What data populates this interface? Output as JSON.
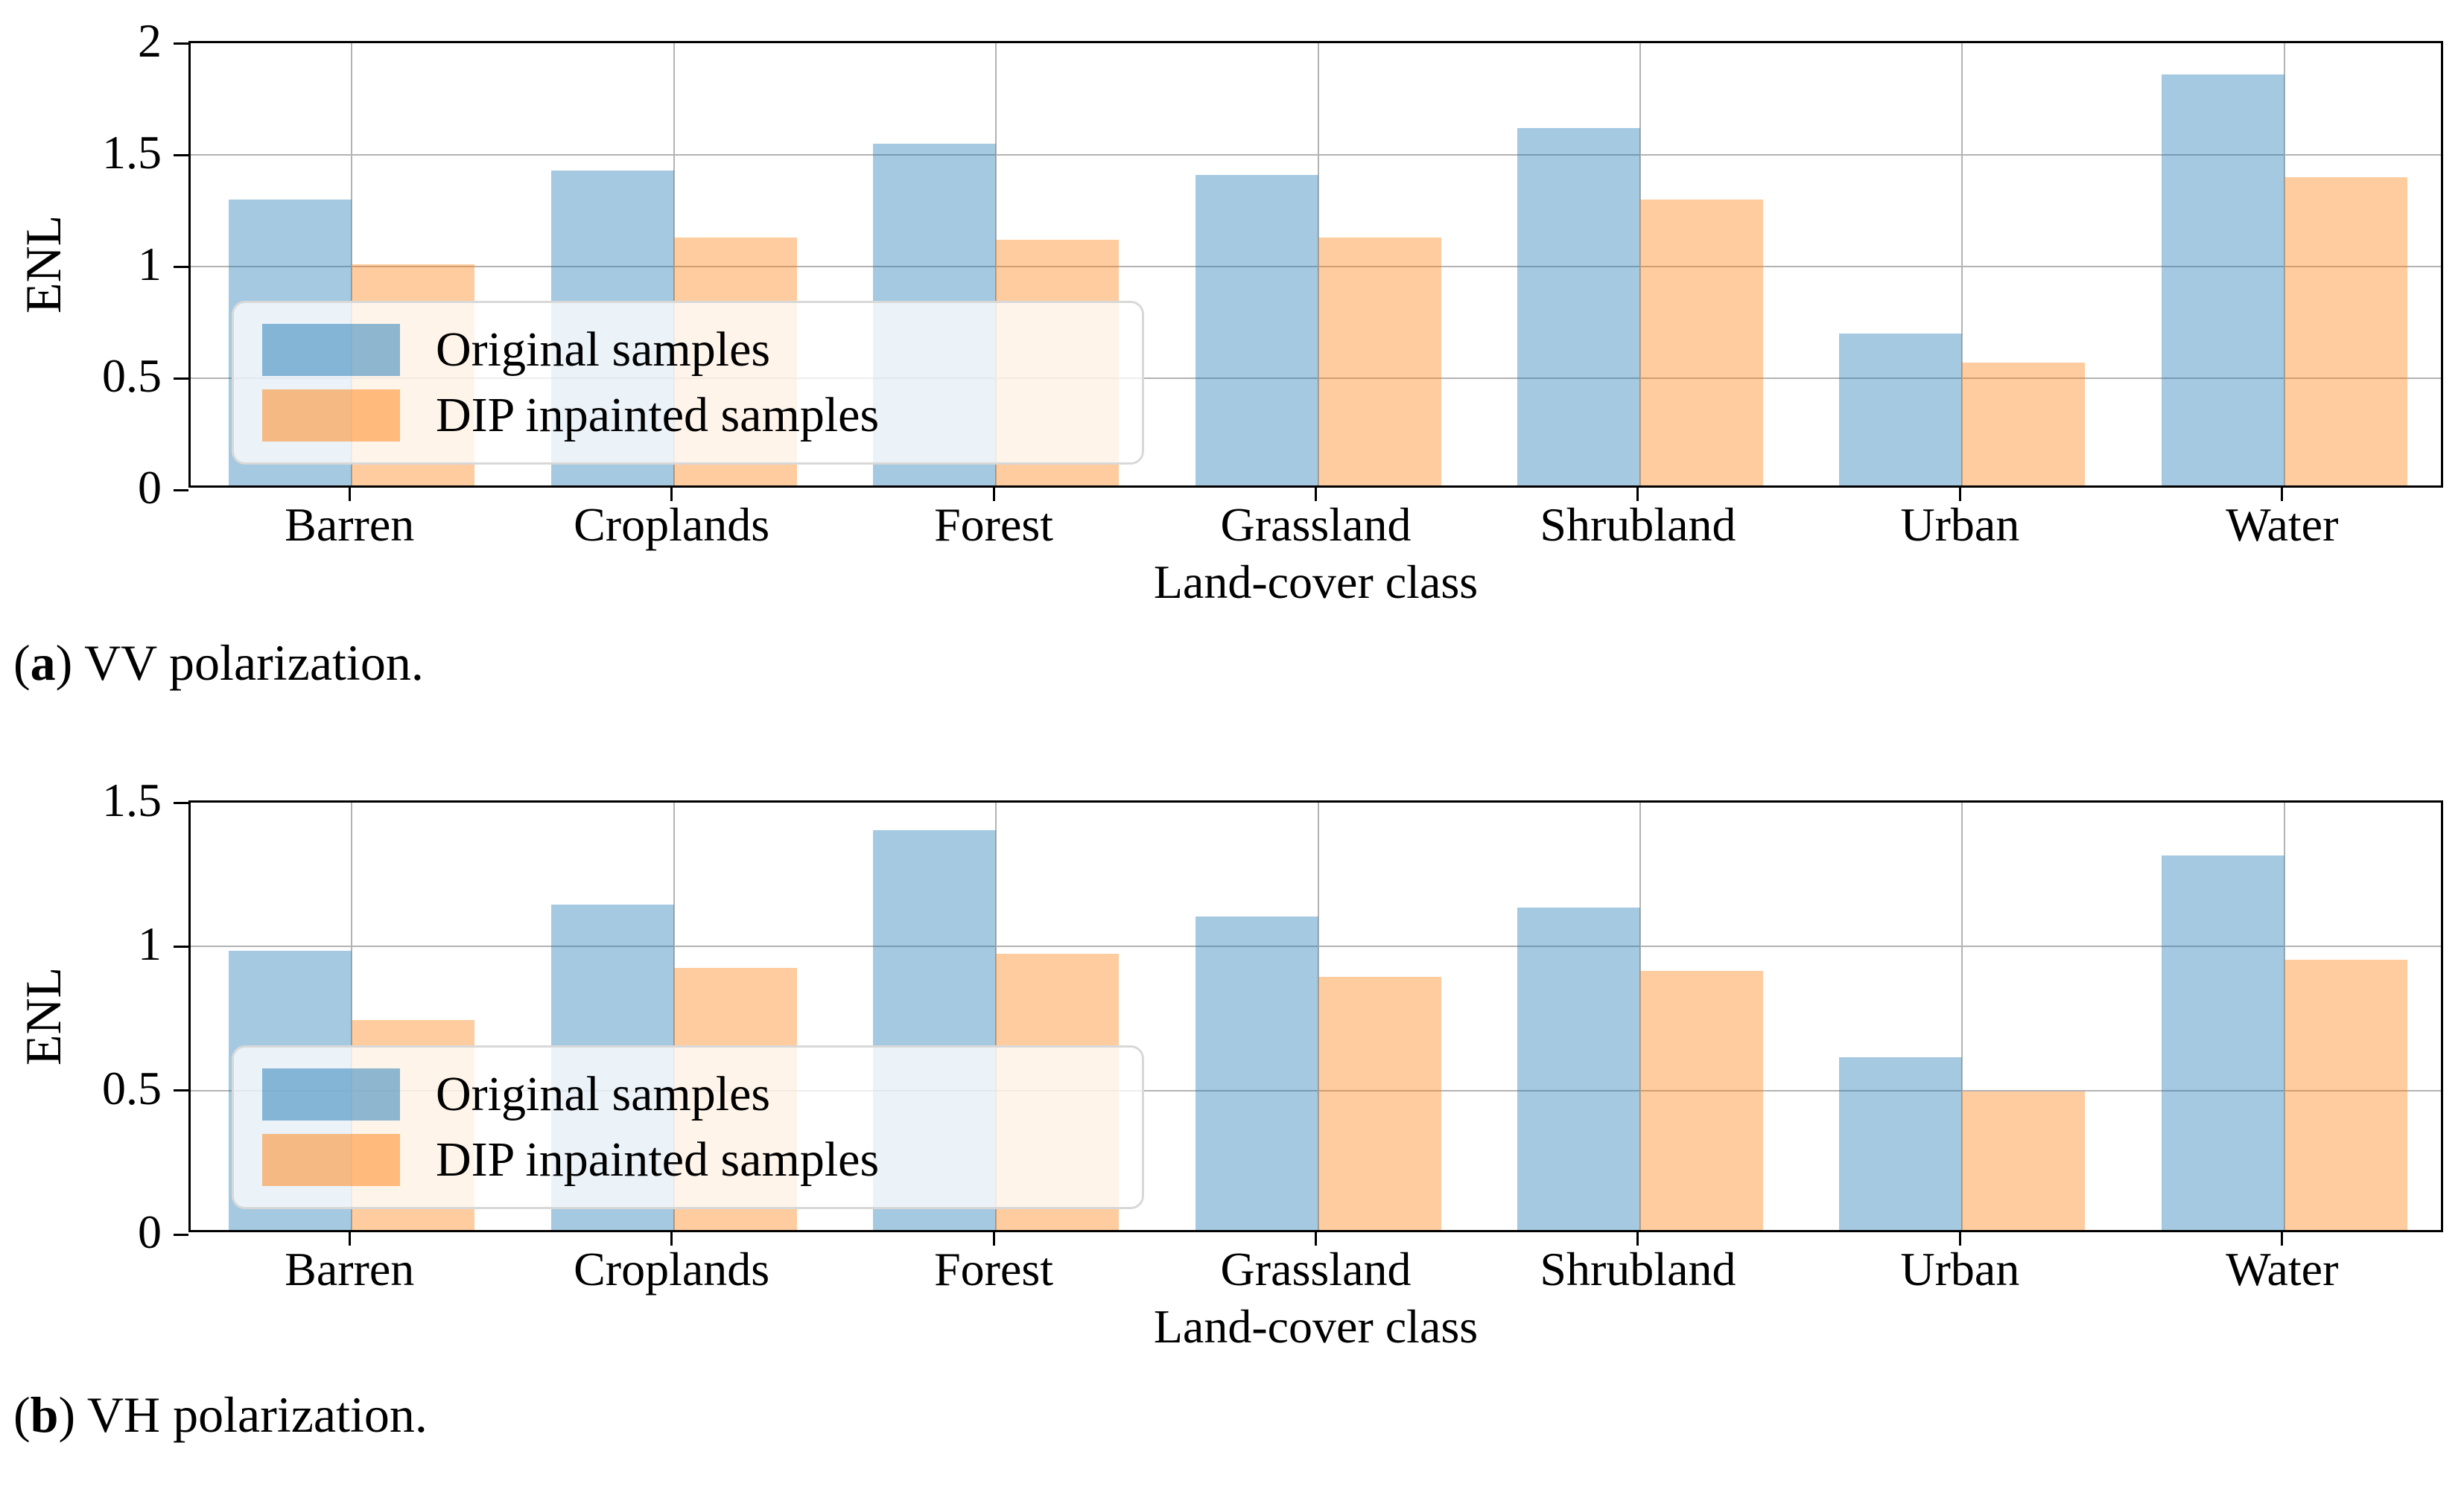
{
  "colors": {
    "bar_blue": "#1f77b4",
    "bar_orange": "#ff7f0e",
    "bar_alpha": 0.4,
    "gridline": "#b3b3b3",
    "legend_border": "#d8d8d8",
    "text": "#000000"
  },
  "legend": {
    "items": [
      {
        "label": "Original samples",
        "color": "#1f77b4"
      },
      {
        "label": "DIP inpainted samples",
        "color": "#ff7f0e"
      }
    ],
    "position": "lower left"
  },
  "chart_data": [
    {
      "type": "bar",
      "panel": "a",
      "caption_parts": {
        "pre": "(",
        "letter": "a",
        "post": ") VV polarization."
      },
      "categories": [
        "Barren",
        "Croplands",
        "Forest",
        "Grassland",
        "Shrubland",
        "Urban",
        "Water"
      ],
      "series": [
        {
          "name": "Original samples",
          "color": "#1f77b4",
          "values": [
            1.28,
            1.41,
            1.53,
            1.39,
            1.6,
            0.68,
            1.84
          ]
        },
        {
          "name": "DIP inpainted samples",
          "color": "#ff7f0e",
          "values": [
            0.99,
            1.11,
            1.1,
            1.11,
            1.28,
            0.55,
            1.38
          ]
        }
      ],
      "xlabel": "Land-cover class",
      "ylabel": "ENL",
      "ylim": [
        0,
        2.0
      ],
      "yticks": [
        0.0,
        0.5,
        1.0,
        1.5,
        2.0
      ],
      "grid": true,
      "legend_position": "lower left"
    },
    {
      "type": "bar",
      "panel": "b",
      "caption_parts": {
        "pre": "(",
        "letter": "b",
        "post": ") VH polarization."
      },
      "categories": [
        "Barren",
        "Croplands",
        "Forest",
        "Grassland",
        "Shrubland",
        "Urban",
        "Water"
      ],
      "series": [
        {
          "name": "Original samples",
          "color": "#1f77b4",
          "values": [
            0.97,
            1.13,
            1.39,
            1.09,
            1.12,
            0.6,
            1.3
          ]
        },
        {
          "name": "DIP inpainted samples",
          "color": "#ff7f0e",
          "values": [
            0.73,
            0.91,
            0.96,
            0.88,
            0.9,
            0.48,
            0.94
          ]
        }
      ],
      "xlabel": "Land-cover class",
      "ylabel": "ENL",
      "ylim": [
        0,
        1.5
      ],
      "yticks": [
        0.0,
        0.5,
        1.0,
        1.5
      ],
      "grid": true,
      "legend_position": "lower left"
    }
  ]
}
